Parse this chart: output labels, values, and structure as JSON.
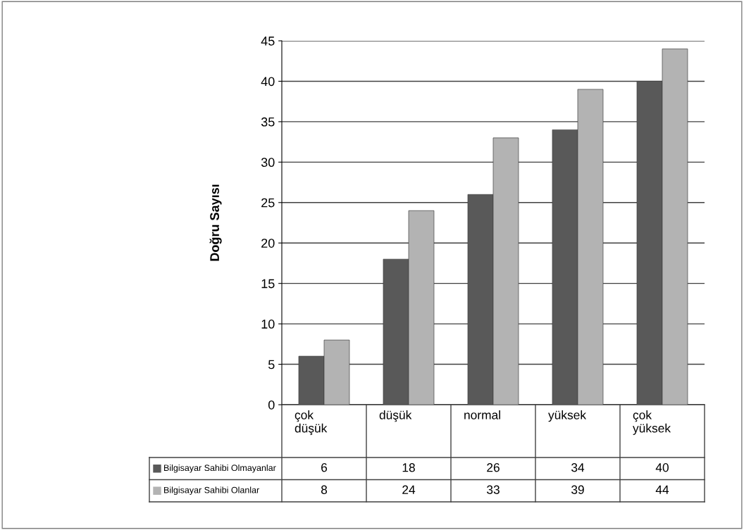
{
  "chart_data": {
    "type": "bar",
    "ylabel": "Doğru Sayısı",
    "categories": [
      "çok düşük",
      "düşük",
      "normal",
      "yüksek",
      "çok yüksek"
    ],
    "series": [
      {
        "name": "Bilgisayar Sahibi Olmayanlar",
        "color": "#595959",
        "values": [
          6,
          18,
          26,
          34,
          40
        ]
      },
      {
        "name": "Bilgisayar Sahibi Olanlar",
        "color": "#b3b3b3",
        "values": [
          8,
          24,
          33,
          39,
          44
        ]
      }
    ],
    "ylim": [
      0,
      45
    ],
    "yticks": [
      0,
      5,
      10,
      15,
      20,
      25,
      30,
      35,
      40,
      45
    ],
    "grid": "y",
    "legend": "bottom",
    "data_labels": true
  }
}
